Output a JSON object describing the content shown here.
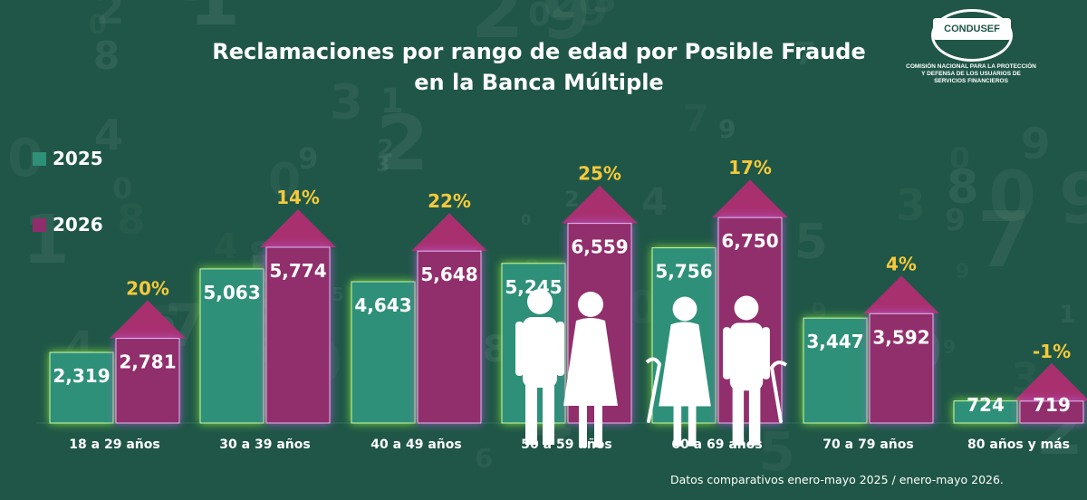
{
  "chart_data": {
    "type": "bar",
    "title_line1": "Reclamaciones por rango de edad por Posible Fraude",
    "title_line2": "en la Banca Múltiple",
    "categories": [
      "18 a 29 años",
      "30 a 39 años",
      "40 a 49 años",
      "50 a 59 años",
      "60 a 69 años",
      "70 a 79 años",
      "80 años y más"
    ],
    "series": [
      {
        "name": "2025",
        "values": [
          2319,
          5063,
          4643,
          5245,
          5756,
          3447,
          724
        ],
        "labels": [
          "2,319",
          "5,063",
          "4,643",
          "5,245",
          "5,756",
          "3,447",
          "724"
        ],
        "color": "#2e9078"
      },
      {
        "name": "2026",
        "values": [
          2781,
          5774,
          5648,
          6559,
          6750,
          3592,
          719
        ],
        "labels": [
          "2,781",
          "5,774",
          "5,648",
          "6,559",
          "6,750",
          "3,592",
          "719"
        ],
        "color": "#912d6c"
      }
    ],
    "change_pct": [
      "20%",
      "14%",
      "22%",
      "25%",
      "17%",
      "4%",
      "-1%"
    ],
    "ylim": [
      0,
      7500
    ],
    "grid": false,
    "legend_position": "left"
  },
  "logo": {
    "name": "CONDUSEF",
    "subtitle_lines": [
      "COMISIÓN NACIONAL PARA LA PROTECCIÓN",
      "Y DEFENSA DE LOS USUARIOS DE",
      "SERVICIOS FINANCIEROS"
    ]
  },
  "footnote": "Datos comparativos enero-mayo 2025 / enero-mayo 2026.",
  "colors": {
    "background": "#1f5647",
    "bar_2025": "#2e9078",
    "bar_2026": "#912d6c",
    "arrow": "#a8306f",
    "glow_2025": "#8cf23c",
    "glow_2026": "#b65bd9",
    "percent_text": "#f6c93a"
  },
  "icons": [
    "elderly-couple-icon",
    "elderly-couple-with-canes-icon"
  ]
}
